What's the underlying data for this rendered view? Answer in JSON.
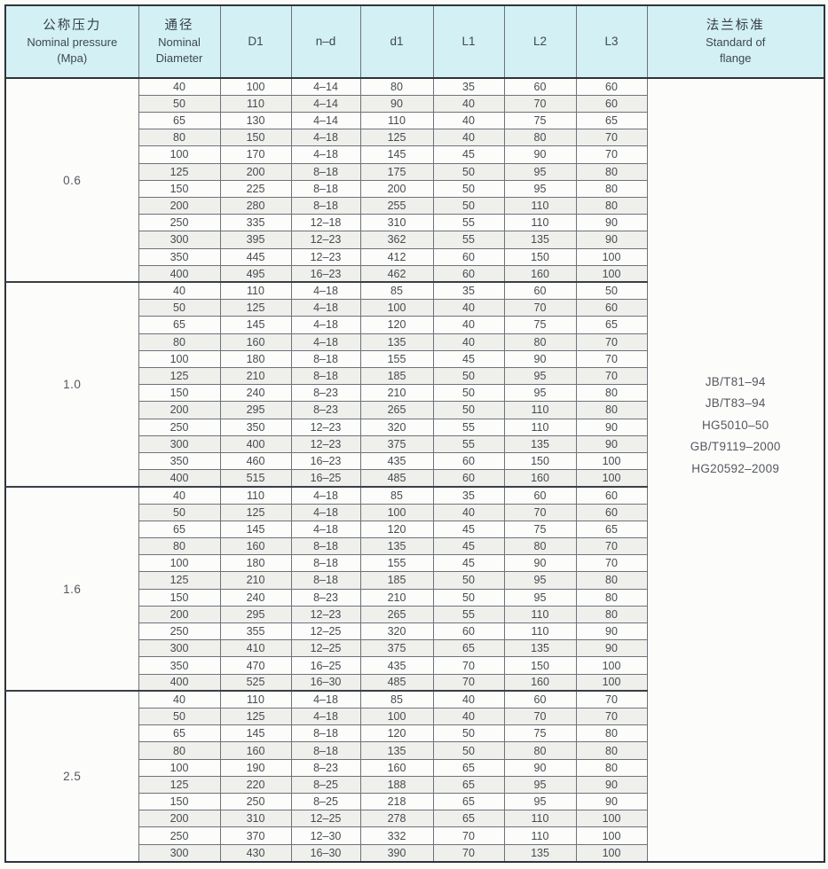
{
  "table": {
    "header": {
      "pressure": {
        "zh": "公称压力",
        "en": "Nominal pressure",
        "unit": "(Mpa)"
      },
      "diameter": {
        "zh": "通径",
        "en1": "Nominal",
        "en2": "Diameter"
      },
      "cols": [
        "D1",
        "n–d",
        "d1",
        "L1",
        "L2",
        "L3"
      ],
      "standard": {
        "zh": "法兰标准",
        "en1": "Standard of",
        "en2": "flange"
      }
    },
    "colors": {
      "header_bg": "#d3f0f4",
      "row_shaded": "#efefec",
      "row_plain": "#fcfcfa",
      "border_dark": "#2f343a",
      "border_cell": "#6d737b",
      "text": "#474b51"
    },
    "groups": [
      {
        "pressure": "0.6",
        "rows": [
          [
            "40",
            "100",
            "4–14",
            "80",
            "35",
            "60",
            "60"
          ],
          [
            "50",
            "110",
            "4–14",
            "90",
            "40",
            "70",
            "60"
          ],
          [
            "65",
            "130",
            "4–14",
            "110",
            "40",
            "75",
            "65"
          ],
          [
            "80",
            "150",
            "4–18",
            "125",
            "40",
            "80",
            "70"
          ],
          [
            "100",
            "170",
            "4–18",
            "145",
            "45",
            "90",
            "70"
          ],
          [
            "125",
            "200",
            "8–18",
            "175",
            "50",
            "95",
            "80"
          ],
          [
            "150",
            "225",
            "8–18",
            "200",
            "50",
            "95",
            "80"
          ],
          [
            "200",
            "280",
            "8–18",
            "255",
            "50",
            "110",
            "80"
          ],
          [
            "250",
            "335",
            "12–18",
            "310",
            "55",
            "110",
            "90"
          ],
          [
            "300",
            "395",
            "12–23",
            "362",
            "55",
            "135",
            "90"
          ],
          [
            "350",
            "445",
            "12–23",
            "412",
            "60",
            "150",
            "100"
          ],
          [
            "400",
            "495",
            "16–23",
            "462",
            "60",
            "160",
            "100"
          ]
        ]
      },
      {
        "pressure": "1.0",
        "rows": [
          [
            "40",
            "110",
            "4–18",
            "85",
            "35",
            "60",
            "50"
          ],
          [
            "50",
            "125",
            "4–18",
            "100",
            "40",
            "70",
            "60"
          ],
          [
            "65",
            "145",
            "4–18",
            "120",
            "40",
            "75",
            "65"
          ],
          [
            "80",
            "160",
            "4–18",
            "135",
            "40",
            "80",
            "70"
          ],
          [
            "100",
            "180",
            "8–18",
            "155",
            "45",
            "90",
            "70"
          ],
          [
            "125",
            "210",
            "8–18",
            "185",
            "50",
            "95",
            "70"
          ],
          [
            "150",
            "240",
            "8–23",
            "210",
            "50",
            "95",
            "80"
          ],
          [
            "200",
            "295",
            "8–23",
            "265",
            "50",
            "110",
            "80"
          ],
          [
            "250",
            "350",
            "12–23",
            "320",
            "55",
            "110",
            "90"
          ],
          [
            "300",
            "400",
            "12–23",
            "375",
            "55",
            "135",
            "90"
          ],
          [
            "350",
            "460",
            "16–23",
            "435",
            "60",
            "150",
            "100"
          ],
          [
            "400",
            "515",
            "16–25",
            "485",
            "60",
            "160",
            "100"
          ]
        ]
      },
      {
        "pressure": "1.6",
        "rows": [
          [
            "40",
            "110",
            "4–18",
            "85",
            "35",
            "60",
            "60"
          ],
          [
            "50",
            "125",
            "4–18",
            "100",
            "40",
            "70",
            "60"
          ],
          [
            "65",
            "145",
            "4–18",
            "120",
            "45",
            "75",
            "65"
          ],
          [
            "80",
            "160",
            "8–18",
            "135",
            "45",
            "80",
            "70"
          ],
          [
            "100",
            "180",
            "8–18",
            "155",
            "45",
            "90",
            "70"
          ],
          [
            "125",
            "210",
            "8–18",
            "185",
            "50",
            "95",
            "80"
          ],
          [
            "150",
            "240",
            "8–23",
            "210",
            "50",
            "95",
            "80"
          ],
          [
            "200",
            "295",
            "12–23",
            "265",
            "55",
            "110",
            "80"
          ],
          [
            "250",
            "355",
            "12–25",
            "320",
            "60",
            "110",
            "90"
          ],
          [
            "300",
            "410",
            "12–25",
            "375",
            "65",
            "135",
            "90"
          ],
          [
            "350",
            "470",
            "16–25",
            "435",
            "70",
            "150",
            "100"
          ],
          [
            "400",
            "525",
            "16–30",
            "485",
            "70",
            "160",
            "100"
          ]
        ]
      },
      {
        "pressure": "2.5",
        "rows": [
          [
            "40",
            "110",
            "4–18",
            "85",
            "40",
            "60",
            "70"
          ],
          [
            "50",
            "125",
            "4–18",
            "100",
            "40",
            "70",
            "70"
          ],
          [
            "65",
            "145",
            "8–18",
            "120",
            "50",
            "75",
            "80"
          ],
          [
            "80",
            "160",
            "8–18",
            "135",
            "50",
            "80",
            "80"
          ],
          [
            "100",
            "190",
            "8–23",
            "160",
            "65",
            "90",
            "80"
          ],
          [
            "125",
            "220",
            "8–25",
            "188",
            "65",
            "95",
            "90"
          ],
          [
            "150",
            "250",
            "8–25",
            "218",
            "65",
            "95",
            "90"
          ],
          [
            "200",
            "310",
            "12–25",
            "278",
            "65",
            "110",
            "100"
          ],
          [
            "250",
            "370",
            "12–30",
            "332",
            "70",
            "110",
            "100"
          ],
          [
            "300",
            "430",
            "16–30",
            "390",
            "70",
            "135",
            "100"
          ]
        ]
      }
    ],
    "standards": [
      "JB/T81–94",
      "JB/T83–94",
      "HG5010–50",
      "GB/T9119–2000",
      "HG20592–2009"
    ]
  }
}
